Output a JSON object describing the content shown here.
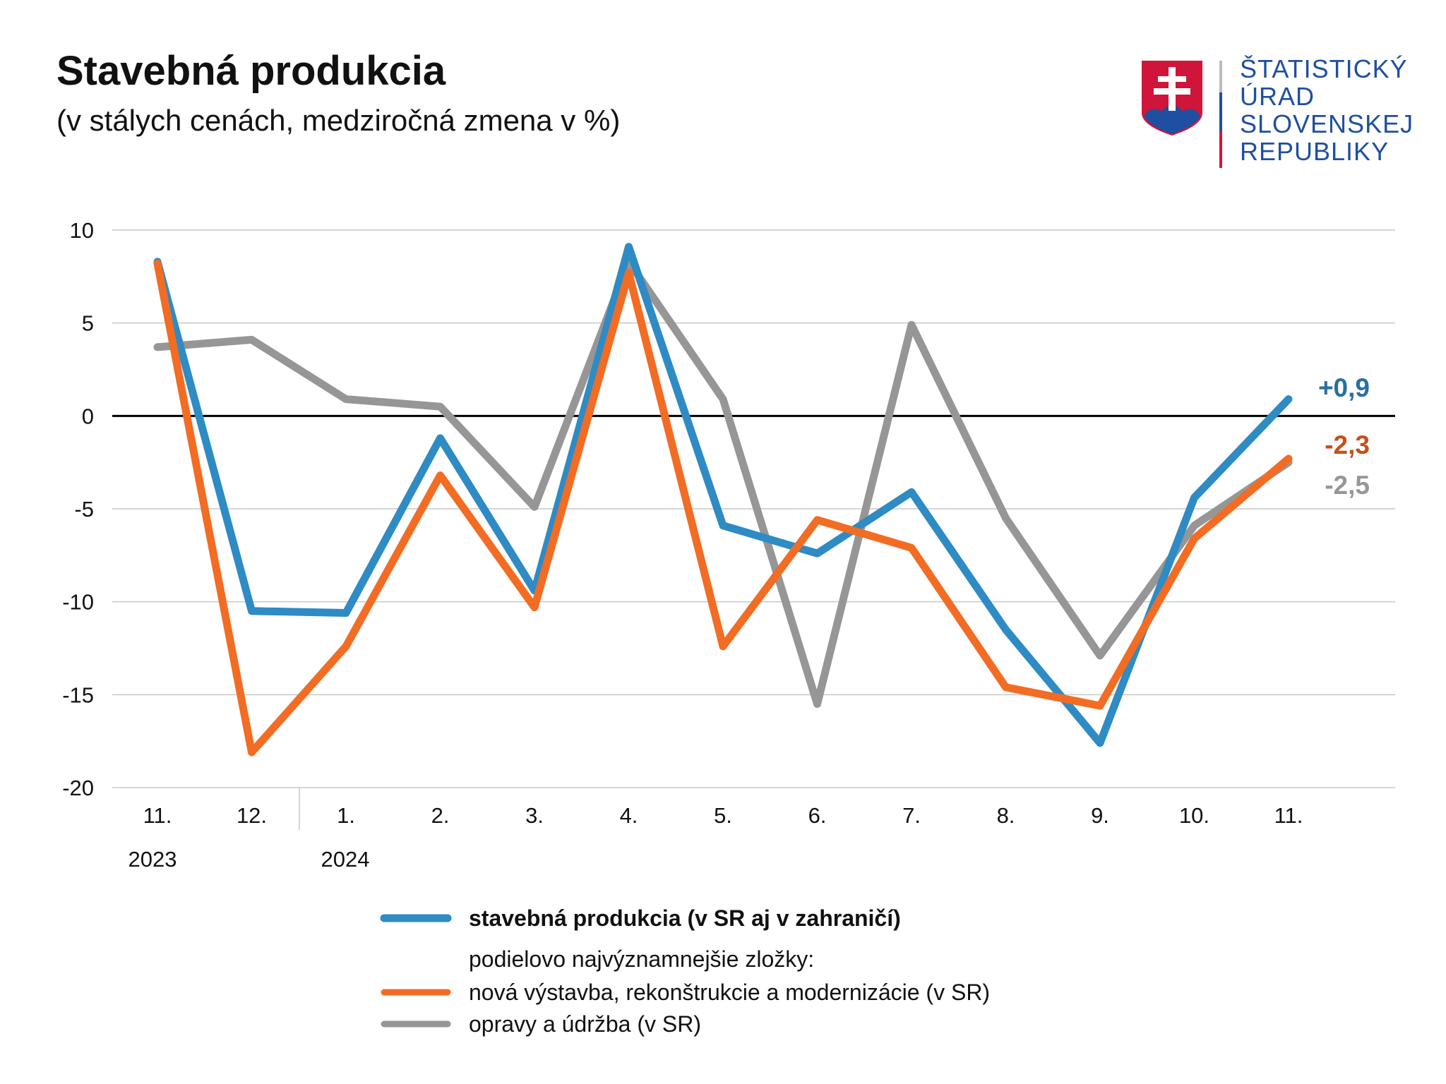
{
  "header": {
    "title": "Stavebná produkcia",
    "subtitle": "(v stálych cenách, medziročná zmena v %)"
  },
  "logo": {
    "lines": [
      "ŠTATISTICKÝ",
      "ÚRAD",
      "SLOVENSKEJ",
      "REPUBLIKY"
    ]
  },
  "chart_data": {
    "type": "line",
    "title": "Stavebná produkcia",
    "subtitle": "(v stálych cenách, medziročná zmena v %)",
    "xlabel": "",
    "ylabel": "",
    "ylim": [
      -20,
      10
    ],
    "yticks": [
      "10",
      "5",
      "0",
      "-5",
      "-10",
      "-15",
      "-20"
    ],
    "ytick_values": [
      10,
      5,
      0,
      -5,
      -10,
      -15,
      -20
    ],
    "categories": [
      "11.",
      "12.",
      "1.",
      "2.",
      "3.",
      "4.",
      "5.",
      "6.",
      "7.",
      "8.",
      "9.",
      "10.",
      "11."
    ],
    "years": [
      {
        "label": "2023",
        "start_index": 0
      },
      {
        "label": "2024",
        "start_index": 2
      }
    ],
    "grid": true,
    "legend_placement": "bottom",
    "legend_note": "podielovo najvýznamnejšie zložky:",
    "series": [
      {
        "name": "stavebná produkcia (v SR aj v zahraničí)",
        "color": "#2E8BC4",
        "label_color": "#2A6FA0",
        "end_label": "+0,9",
        "values": [
          8.3,
          -10.5,
          -10.6,
          -1.2,
          -9.4,
          9.1,
          -5.9,
          -7.4,
          -4.1,
          -11.5,
          -17.6,
          -4.4,
          0.9
        ]
      },
      {
        "name": "nová výstavba, rekonštrukcie a modernizácie (v SR)",
        "color": "#F26C24",
        "label_color": "#C4501E",
        "end_label": "-2,3",
        "values": [
          8.2,
          -18.1,
          -12.4,
          -3.2,
          -10.3,
          7.7,
          -12.4,
          -5.6,
          -7.1,
          -14.6,
          -15.6,
          -6.6,
          -2.3
        ]
      },
      {
        "name": "opravy a údržba (v SR)",
        "color": "#969696",
        "label_color": "#969696",
        "end_label": "-2,5",
        "values": [
          3.7,
          4.1,
          0.9,
          0.5,
          -4.9,
          8.3,
          0.9,
          -15.5,
          4.9,
          -5.5,
          -12.9,
          -5.9,
          -2.5
        ]
      }
    ]
  }
}
